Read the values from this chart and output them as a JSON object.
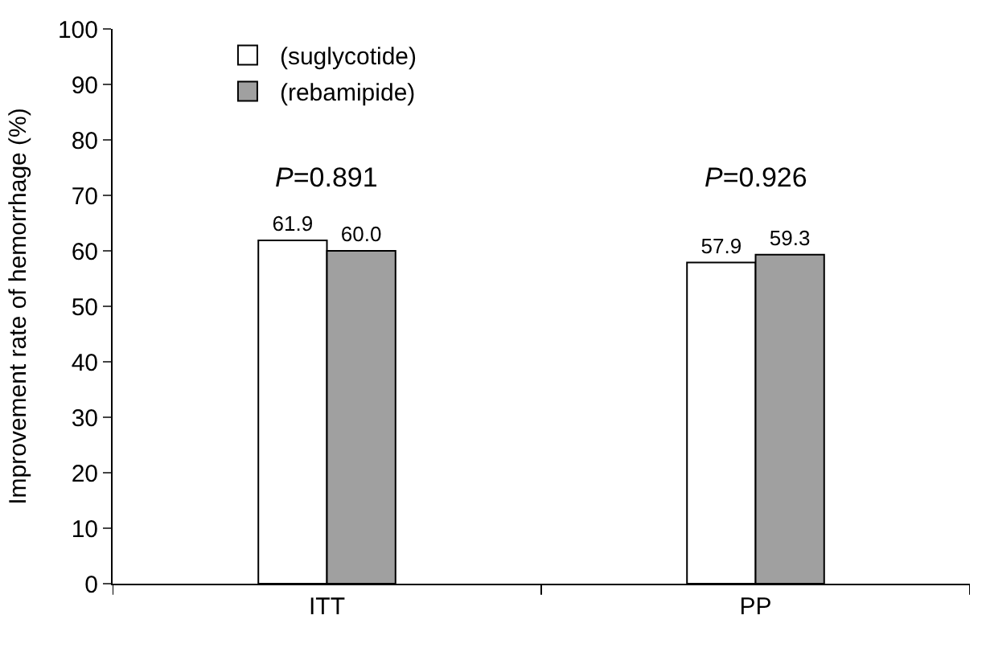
{
  "chart_data": {
    "type": "bar",
    "ylabel": "Improvement rate of hemorrhage (%)",
    "categories": [
      "ITT",
      "PP"
    ],
    "series": [
      {
        "name": "(suglycotide)",
        "color": "#ffffff",
        "values": [
          61.9,
          57.9
        ],
        "value_labels": [
          "61.9",
          "57.9"
        ]
      },
      {
        "name": "(rebamipide)",
        "color": "#a0a0a0",
        "values": [
          60.0,
          59.3
        ],
        "value_labels": [
          "60.0",
          "59.3"
        ]
      }
    ],
    "ylim": [
      0,
      100
    ],
    "yticks": [
      0,
      10,
      20,
      30,
      40,
      50,
      60,
      70,
      80,
      90,
      100
    ],
    "legend": "top left",
    "annotations": [
      "P=0.891",
      "P=0.926"
    ]
  }
}
